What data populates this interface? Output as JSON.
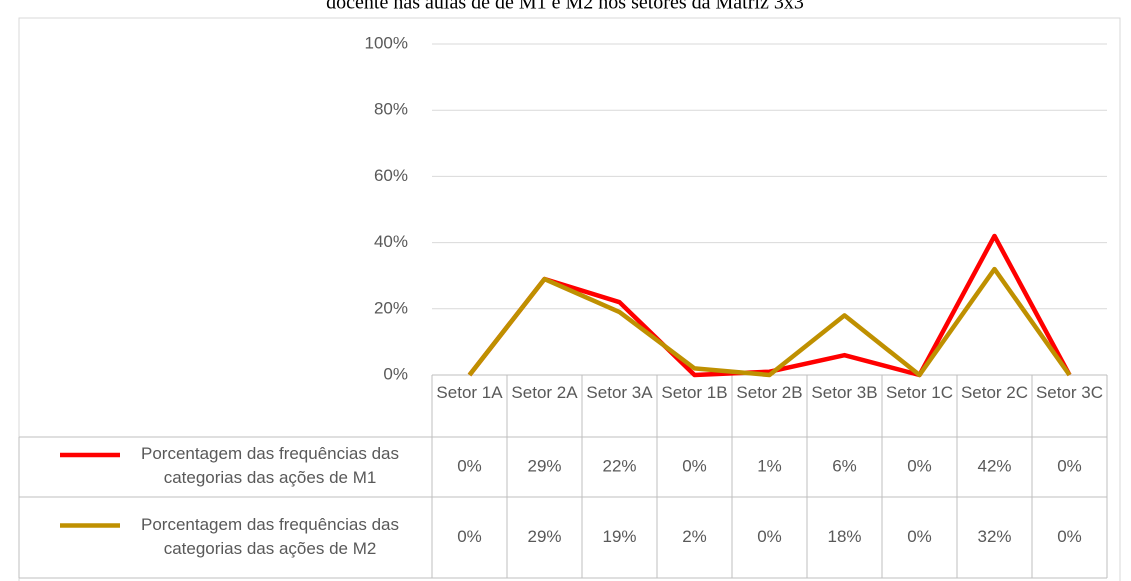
{
  "chart_data": {
    "type": "line",
    "title": "docente nas aulas de de M1 e M2 nos setores da Matriz 3x3",
    "categories": [
      "Setor 1A",
      "Setor 2A",
      "Setor 3A",
      "Setor 1B",
      "Setor 2B",
      "Setor 3B",
      "Setor 1C",
      "Setor 2C",
      "Setor 3C"
    ],
    "series": [
      {
        "name": "Porcentagem das frequências das categorias das ações de M1",
        "color": "#ff0000",
        "values": [
          0,
          29,
          22,
          0,
          1,
          6,
          0,
          42,
          0
        ],
        "value_labels": [
          "0%",
          "29%",
          "22%",
          "0%",
          "1%",
          "6%",
          "0%",
          "42%",
          "0%"
        ]
      },
      {
        "name": "Porcentagem das frequências das categorias das ações de M2",
        "color": "#bf9000",
        "values": [
          0,
          29,
          19,
          2,
          0,
          18,
          0,
          32,
          0
        ],
        "value_labels": [
          "0%",
          "29%",
          "19%",
          "2%",
          "0%",
          "18%",
          "0%",
          "32%",
          "0%"
        ]
      }
    ],
    "ylim": [
      0,
      100
    ],
    "yticks": [
      {
        "value": 0,
        "label": "0%"
      },
      {
        "value": 20,
        "label": "20%"
      },
      {
        "value": 40,
        "label": "40%"
      },
      {
        "value": 60,
        "label": "60%"
      },
      {
        "value": 80,
        "label": "80%"
      },
      {
        "value": 100,
        "label": "100%"
      }
    ],
    "grid": true
  }
}
